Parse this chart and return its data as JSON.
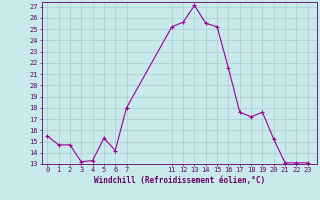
{
  "x": [
    0,
    1,
    2,
    3,
    4,
    5,
    6,
    7,
    11,
    12,
    13,
    14,
    15,
    16,
    17,
    18,
    19,
    20,
    21,
    22,
    23
  ],
  "y": [
    15.5,
    14.7,
    14.7,
    13.2,
    13.3,
    15.3,
    14.2,
    18.0,
    25.2,
    25.6,
    27.1,
    25.5,
    25.2,
    21.5,
    17.6,
    17.2,
    17.6,
    15.2,
    13.1,
    13.1,
    13.1
  ],
  "line_color": "#990099",
  "marker_color": "#990099",
  "bg_color": "#c8eaea",
  "grid_color": "#aacccc",
  "xlabel": "Windchill (Refroidissement éolien,°C)",
  "yticks": [
    13,
    14,
    15,
    16,
    17,
    18,
    19,
    20,
    21,
    22,
    23,
    24,
    25,
    26,
    27
  ],
  "xticks": [
    0,
    1,
    2,
    3,
    4,
    5,
    6,
    7,
    11,
    12,
    13,
    14,
    15,
    16,
    17,
    18,
    19,
    20,
    21,
    22,
    23
  ],
  "xlim": [
    -0.5,
    23.8
  ],
  "ylim": [
    13,
    27.4
  ],
  "xlabel_fontsize": 5.5,
  "tick_fontsize": 5.0
}
